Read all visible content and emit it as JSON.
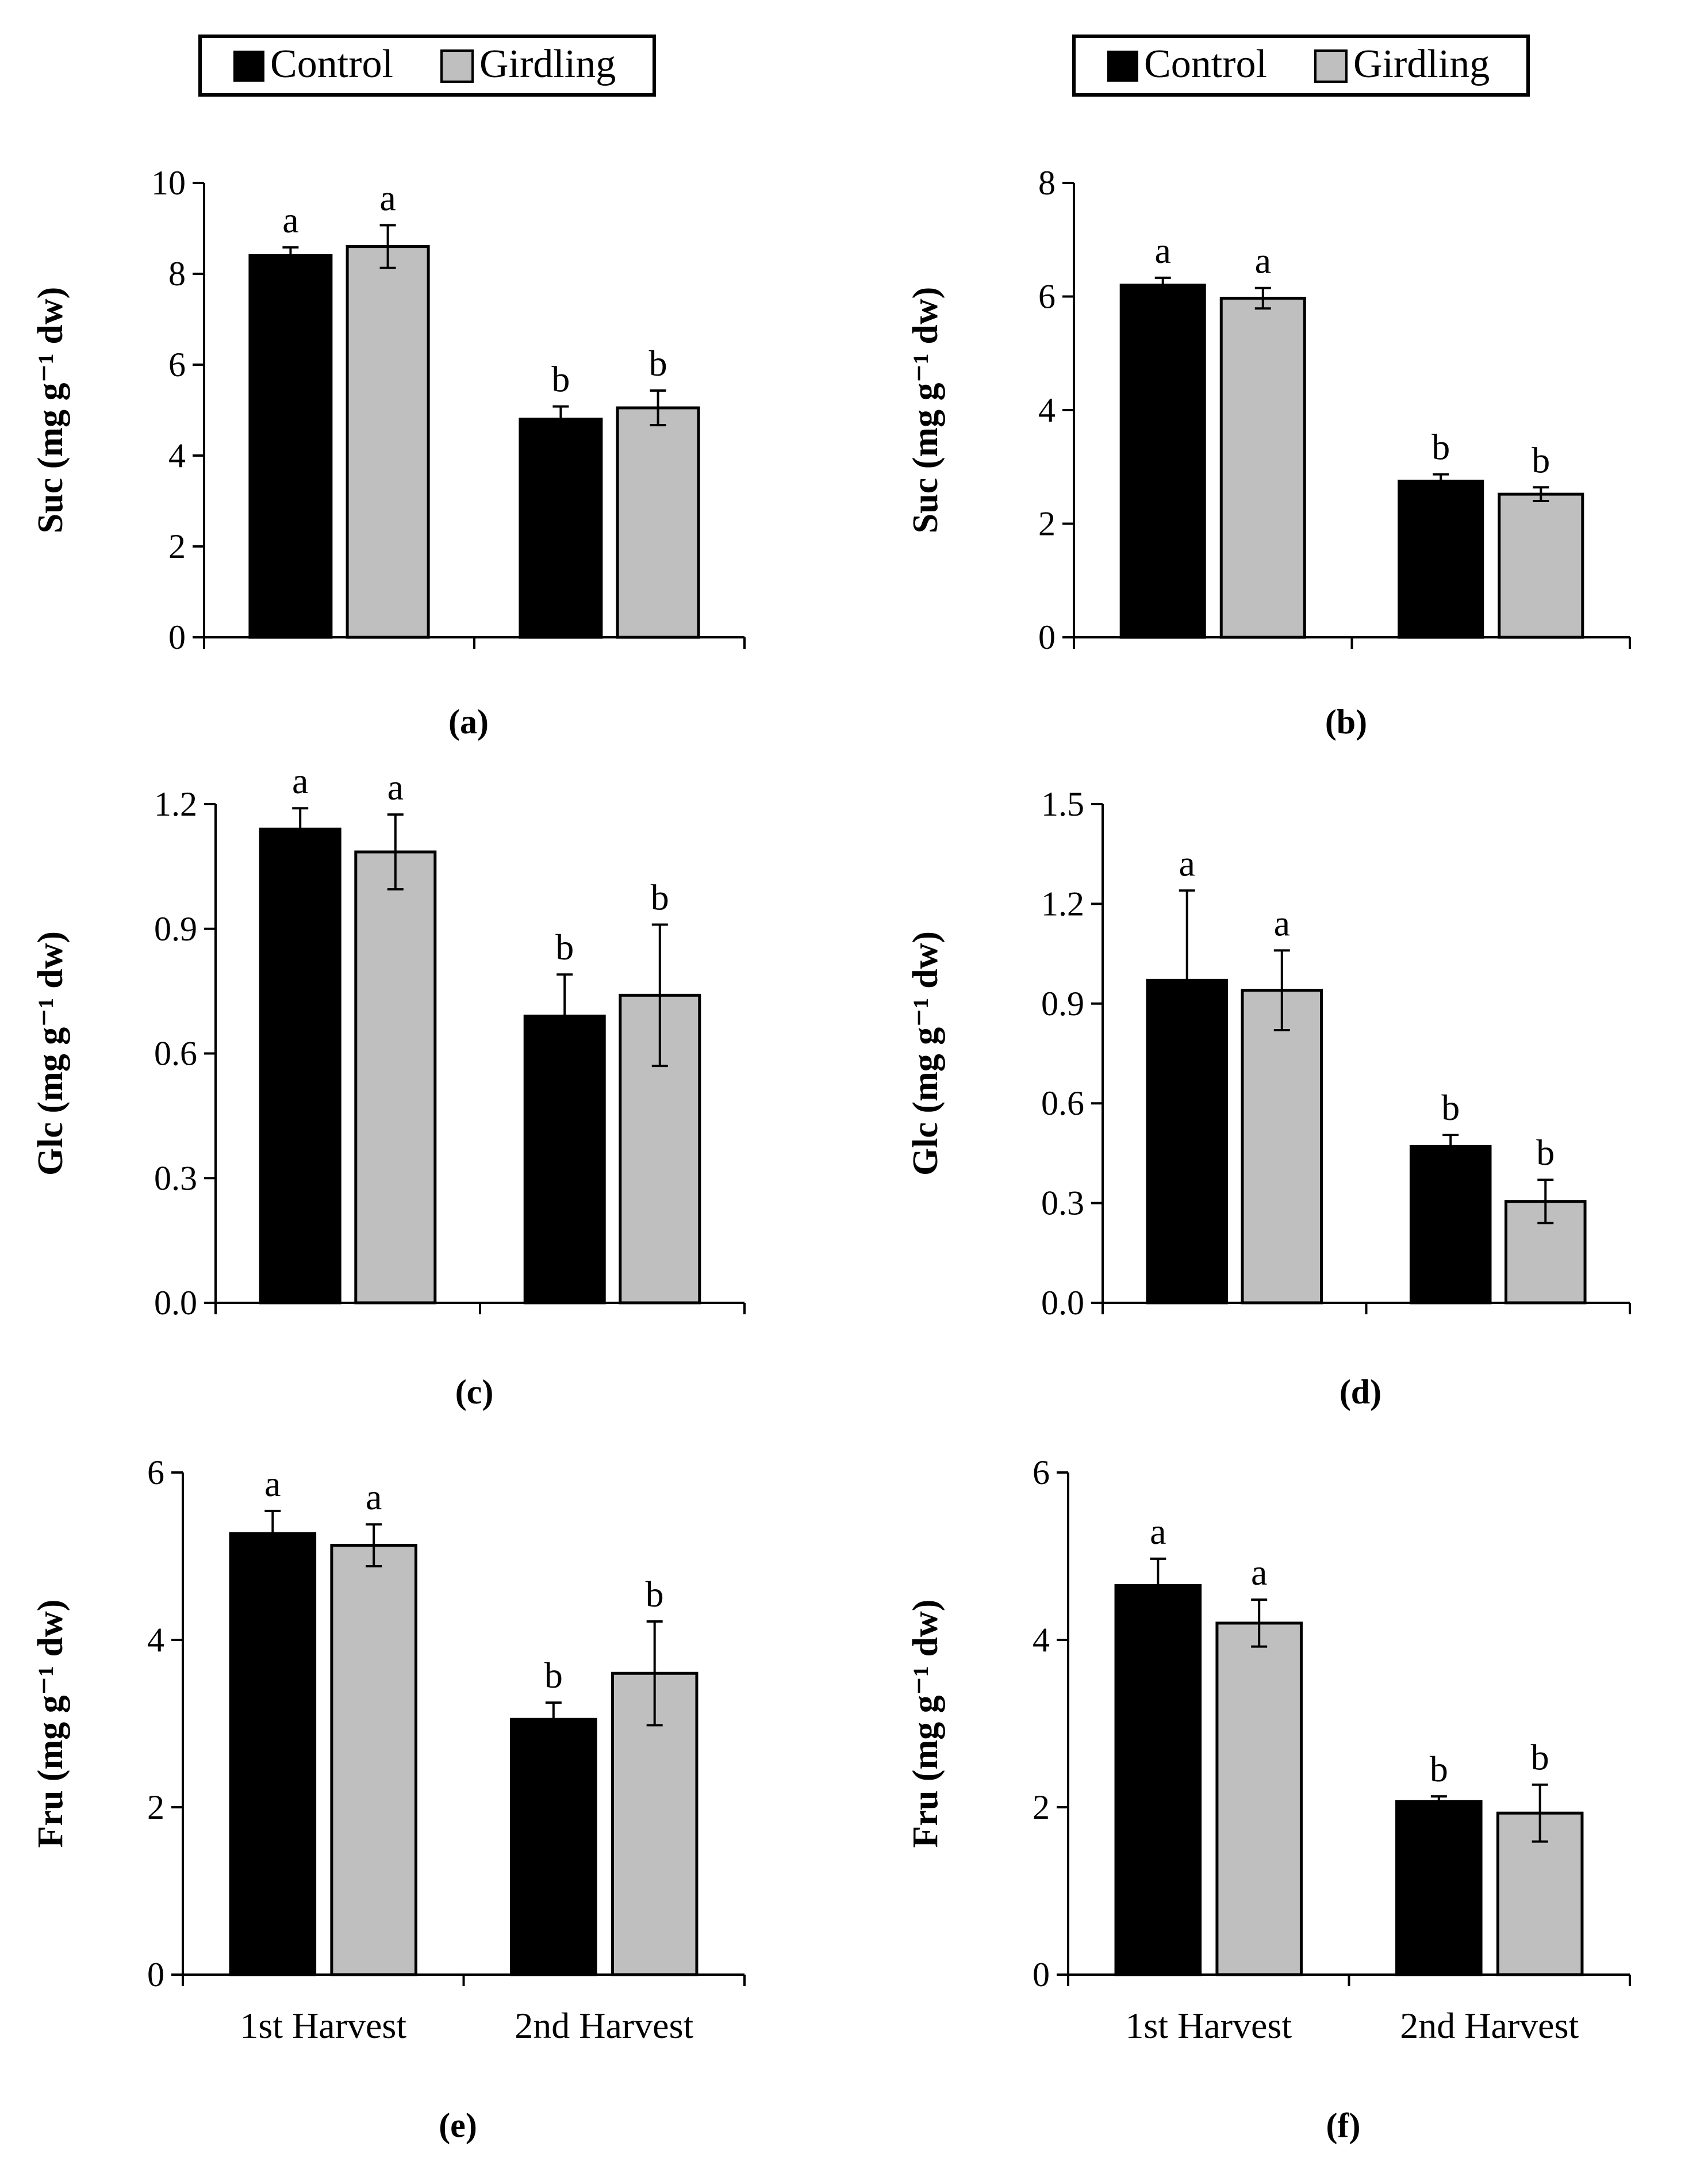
{
  "legend": {
    "left": [
      {
        "label": "Control",
        "color": "#000000"
      },
      {
        "label": "Girdling",
        "color": "#bfbfbf"
      }
    ],
    "right": [
      {
        "label": "Control",
        "color": "#000000"
      },
      {
        "label": "Girdling",
        "color": "#bfbfbf"
      }
    ]
  },
  "chart_data": [
    {
      "type": "bar",
      "panel": "(a)",
      "ylabel": "Suc (mg g⁻¹ dw)",
      "ylim": [
        0,
        10
      ],
      "yticks": [
        "0",
        "2",
        "4",
        "6",
        "8",
        "10"
      ],
      "categories": [
        "1st Harvest",
        "2nd Harvest"
      ],
      "show_categories": false,
      "series": [
        {
          "name": "Control",
          "values": [
            8.4,
            4.8
          ],
          "errors": [
            0.18,
            0.28
          ],
          "letters": [
            "a",
            "b"
          ]
        },
        {
          "name": "Girdling",
          "values": [
            8.6,
            5.05
          ],
          "errors": [
            0.47,
            0.38
          ],
          "letters": [
            "a",
            "b"
          ]
        }
      ]
    },
    {
      "type": "bar",
      "panel": "(b)",
      "ylabel": "Suc (mg g⁻¹ dw)",
      "ylim": [
        0,
        8
      ],
      "yticks": [
        "0",
        "2",
        "4",
        "6",
        "8"
      ],
      "categories": [
        "1st Harvest",
        "2nd Harvest"
      ],
      "show_categories": false,
      "series": [
        {
          "name": "Control",
          "values": [
            6.2,
            2.75
          ],
          "errors": [
            0.13,
            0.12
          ],
          "letters": [
            "a",
            "b"
          ]
        },
        {
          "name": "Girdling",
          "values": [
            5.97,
            2.52
          ],
          "errors": [
            0.18,
            0.12
          ],
          "letters": [
            "a",
            "b"
          ]
        }
      ]
    },
    {
      "type": "bar",
      "panel": "(c)",
      "ylabel": "Glc (mg g⁻¹ dw)",
      "ylim": [
        0,
        1.2
      ],
      "yticks": [
        "0.0",
        "0.3",
        "0.6",
        "0.9",
        "1.2"
      ],
      "categories": [
        "1st Harvest",
        "2nd Harvest"
      ],
      "show_categories": false,
      "series": [
        {
          "name": "Control",
          "values": [
            1.14,
            0.69
          ],
          "errors": [
            0.05,
            0.1
          ],
          "letters": [
            "a",
            "b"
          ]
        },
        {
          "name": "Girdling",
          "values": [
            1.085,
            0.74
          ],
          "errors": [
            0.09,
            0.17
          ],
          "letters": [
            "a",
            "b"
          ]
        }
      ]
    },
    {
      "type": "bar",
      "panel": "(d)",
      "ylabel": "Glc (mg g⁻¹ dw)",
      "ylim": [
        0,
        1.5
      ],
      "yticks": [
        "0.0",
        "0.3",
        "0.6",
        "0.9",
        "1.2",
        "1.5"
      ],
      "categories": [
        "1st Harvest",
        "2nd Harvest"
      ],
      "show_categories": false,
      "series": [
        {
          "name": "Control",
          "values": [
            0.97,
            0.47
          ],
          "errors": [
            0.27,
            0.035
          ],
          "letters": [
            "a",
            "b"
          ]
        },
        {
          "name": "Girdling",
          "values": [
            0.94,
            0.305
          ],
          "errors": [
            0.12,
            0.065
          ],
          "letters": [
            "a",
            "b"
          ]
        }
      ]
    },
    {
      "type": "bar",
      "panel": "(e)",
      "ylabel": "Fru (mg g⁻¹ dw)",
      "ylim": [
        0,
        6
      ],
      "yticks": [
        "0",
        "2",
        "4",
        "6"
      ],
      "categories": [
        "1st Harvest",
        "2nd Harvest"
      ],
      "show_categories": true,
      "series": [
        {
          "name": "Control",
          "values": [
            5.27,
            3.05
          ],
          "errors": [
            0.27,
            0.2
          ],
          "letters": [
            "a",
            "b"
          ]
        },
        {
          "name": "Girdling",
          "values": [
            5.13,
            3.6
          ],
          "errors": [
            0.25,
            0.62
          ],
          "letters": [
            "a",
            "b"
          ]
        }
      ]
    },
    {
      "type": "bar",
      "panel": "(f)",
      "ylabel": "Fru (mg g⁻¹ dw)",
      "ylim": [
        0,
        6
      ],
      "yticks": [
        "0",
        "2",
        "4",
        "6"
      ],
      "categories": [
        "1st Harvest",
        "2nd Harvest"
      ],
      "show_categories": true,
      "series": [
        {
          "name": "Control",
          "values": [
            4.65,
            2.07
          ],
          "errors": [
            0.32,
            0.06
          ],
          "letters": [
            "a",
            "b"
          ]
        },
        {
          "name": "Girdling",
          "values": [
            4.2,
            1.93
          ],
          "errors": [
            0.28,
            0.34
          ],
          "letters": [
            "a",
            "b"
          ]
        }
      ]
    }
  ]
}
